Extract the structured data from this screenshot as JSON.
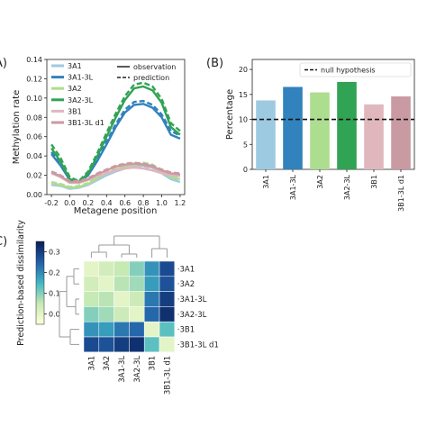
{
  "panels": {
    "a": "A)",
    "b": "(B)",
    "c": "C)"
  },
  "colors": {
    "3A1": "#9ecae1",
    "3A1-3L": "#3182bd",
    "3A2": "#addd8e",
    "3A2-3L": "#31a354",
    "3B1": "#e0b7bd",
    "3B1-3L d1": "#c99aa2",
    "null_line": "#111111"
  },
  "chart_data": [
    {
      "type": "line",
      "xlabel": "Metagene position",
      "ylabel": "Methylation rate",
      "xlim": [
        -0.25,
        1.25
      ],
      "ylim": [
        0.0,
        0.14
      ],
      "xticks": [
        "-0.2",
        "0.0",
        "0.2",
        "0.4",
        "0.6",
        "0.8",
        "1.0",
        "1.2"
      ],
      "xtick_values": [
        -0.2,
        0.0,
        0.2,
        0.4,
        0.6,
        0.8,
        1.0,
        1.2
      ],
      "yticks": [
        "0.00",
        "0.02",
        "0.04",
        "0.06",
        "0.08",
        "0.10",
        "0.12",
        "0.14"
      ],
      "ytick_values": [
        0.0,
        0.02,
        0.04,
        0.06,
        0.08,
        0.1,
        0.12,
        0.14
      ],
      "legend_series": [
        "3A1",
        "3A1-3L",
        "3A2",
        "3A2-3L",
        "3B1",
        "3B1-3L d1"
      ],
      "legend_styles": [
        "observation",
        "prediction"
      ],
      "x": [
        -0.2,
        -0.1,
        0.0,
        0.1,
        0.2,
        0.3,
        0.4,
        0.5,
        0.6,
        0.7,
        0.8,
        0.9,
        1.0,
        1.1,
        1.2
      ],
      "series": [
        {
          "name": "3A1",
          "observation": [
            0.01,
            0.009,
            0.006,
            0.007,
            0.01,
            0.015,
            0.02,
            0.024,
            0.027,
            0.029,
            0.03,
            0.028,
            0.022,
            0.016,
            0.013
          ],
          "prediction": [
            0.011,
            0.01,
            0.007,
            0.008,
            0.011,
            0.016,
            0.021,
            0.025,
            0.028,
            0.03,
            0.031,
            0.029,
            0.023,
            0.017,
            0.014
          ]
        },
        {
          "name": "3A1-3L",
          "observation": [
            0.042,
            0.03,
            0.015,
            0.012,
            0.02,
            0.035,
            0.052,
            0.07,
            0.085,
            0.093,
            0.094,
            0.09,
            0.08,
            0.062,
            0.058
          ],
          "prediction": [
            0.044,
            0.032,
            0.016,
            0.013,
            0.022,
            0.037,
            0.055,
            0.073,
            0.088,
            0.096,
            0.097,
            0.093,
            0.083,
            0.066,
            0.061
          ]
        },
        {
          "name": "3A2",
          "observation": [
            0.012,
            0.01,
            0.007,
            0.008,
            0.011,
            0.017,
            0.022,
            0.026,
            0.029,
            0.031,
            0.032,
            0.03,
            0.024,
            0.018,
            0.016
          ],
          "prediction": [
            0.013,
            0.011,
            0.008,
            0.009,
            0.012,
            0.018,
            0.023,
            0.027,
            0.03,
            0.032,
            0.033,
            0.031,
            0.025,
            0.019,
            0.017
          ]
        },
        {
          "name": "3A2-3L",
          "observation": [
            0.048,
            0.034,
            0.016,
            0.012,
            0.022,
            0.04,
            0.06,
            0.08,
            0.098,
            0.11,
            0.112,
            0.108,
            0.095,
            0.07,
            0.062
          ],
          "prediction": [
            0.052,
            0.038,
            0.018,
            0.014,
            0.024,
            0.043,
            0.064,
            0.084,
            0.102,
            0.114,
            0.116,
            0.112,
            0.099,
            0.074,
            0.066
          ]
        },
        {
          "name": "3B1",
          "observation": [
            0.022,
            0.018,
            0.012,
            0.012,
            0.015,
            0.019,
            0.022,
            0.025,
            0.027,
            0.028,
            0.027,
            0.025,
            0.022,
            0.02,
            0.019
          ],
          "prediction": [
            0.023,
            0.019,
            0.013,
            0.013,
            0.016,
            0.02,
            0.023,
            0.026,
            0.028,
            0.029,
            0.028,
            0.026,
            0.023,
            0.021,
            0.02
          ]
        },
        {
          "name": "3B1-3L d1",
          "observation": [
            0.023,
            0.019,
            0.013,
            0.013,
            0.016,
            0.021,
            0.025,
            0.029,
            0.031,
            0.032,
            0.031,
            0.029,
            0.025,
            0.022,
            0.021
          ],
          "prediction": [
            0.024,
            0.02,
            0.014,
            0.014,
            0.017,
            0.022,
            0.026,
            0.03,
            0.032,
            0.033,
            0.032,
            0.03,
            0.026,
            0.023,
            0.022
          ]
        }
      ]
    },
    {
      "type": "bar",
      "ylabel": "Percentage",
      "ylim": [
        0,
        22
      ],
      "yticks": [
        "0",
        "5",
        "10",
        "15",
        "20"
      ],
      "ytick_values": [
        0,
        5,
        10,
        15,
        20
      ],
      "categories": [
        "3A1",
        "3A1-3L",
        "3A2",
        "3A2-3L",
        "3B1",
        "3B1-3L d1"
      ],
      "values": [
        13.8,
        16.5,
        15.4,
        17.5,
        13.0,
        14.6
      ],
      "reference_line": {
        "label": "null hypothesis",
        "value": 10
      }
    },
    {
      "type": "heatmap",
      "colorbar_label": "Prediction-based dissimilarity",
      "colorbar_ticks": [
        "0.0",
        "0.1",
        "0.2",
        "0.3"
      ],
      "colorbar_tick_values": [
        0.0,
        0.1,
        0.2,
        0.3
      ],
      "vmin": -0.05,
      "vmax": 0.35,
      "rows": [
        "3A1",
        "3A2",
        "3A1-3L",
        "3A2-3L",
        "3B1",
        "3B1-3L d1"
      ],
      "columns": [
        "3A1",
        "3A2",
        "3A1-3L",
        "3A2-3L",
        "3B1",
        "3B1-3L d1"
      ],
      "values": [
        [
          0.0,
          0.03,
          0.05,
          0.1,
          0.19,
          0.28
        ],
        [
          0.03,
          0.0,
          0.06,
          0.08,
          0.18,
          0.27
        ],
        [
          0.05,
          0.06,
          0.0,
          0.04,
          0.22,
          0.3
        ],
        [
          0.1,
          0.08,
          0.04,
          0.0,
          0.24,
          0.32
        ],
        [
          0.19,
          0.18,
          0.22,
          0.24,
          0.0,
          0.13
        ],
        [
          0.28,
          0.27,
          0.3,
          0.32,
          0.13,
          0.0
        ]
      ]
    }
  ]
}
